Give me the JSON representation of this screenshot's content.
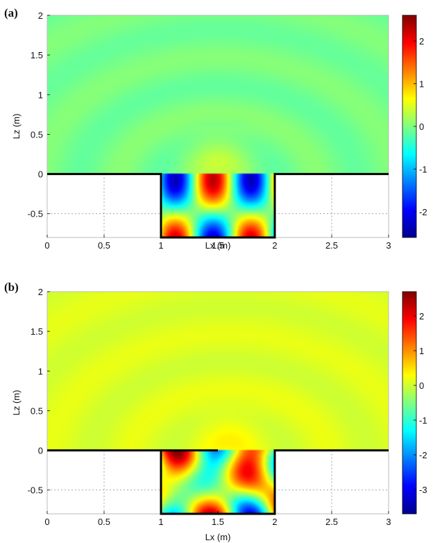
{
  "chart_data": [
    {
      "type": "heatmap",
      "panel_label": "(a)",
      "xlabel": "Lx (m)",
      "ylabel": "Lz (m)",
      "xlim": [
        0,
        3
      ],
      "ylim": [
        -0.8,
        2
      ],
      "xticks": [
        "0",
        "0.5",
        "1",
        "1.5",
        "2",
        "2.5",
        "3"
      ],
      "yticks": [
        "2",
        "1.5",
        "1",
        "0.5",
        "0",
        "-0.5"
      ],
      "colorbar": {
        "min": -2.6,
        "max": 2.6,
        "ticks": [
          "2",
          "1",
          "0",
          "-1",
          "-2"
        ]
      },
      "geometry": {
        "ground_level": 0,
        "cavity_x": [
          1,
          2
        ],
        "cavity_bottom": -0.8
      },
      "cavity_modes": {
        "nx": 3,
        "nz": 2,
        "sign": 1
      },
      "radiation_source_x": 1.5
    },
    {
      "type": "heatmap",
      "panel_label": "(b)",
      "xlabel": "Lx (m)",
      "ylabel": "Lz (m)",
      "xlim": [
        0,
        3
      ],
      "ylim": [
        -0.8,
        2
      ],
      "xticks": [
        "0",
        "0.5",
        "1",
        "1.5",
        "2",
        "2.5",
        "3"
      ],
      "yticks": [
        "2",
        "1.5",
        "1",
        "0.5",
        "0",
        "-0.5"
      ],
      "colorbar": {
        "min": -3.7,
        "max": 2.7,
        "ticks": [
          "2",
          "1",
          "0",
          "-1",
          "-2",
          "-3"
        ]
      },
      "geometry": {
        "ground_level": 0,
        "cavity_x": [
          1,
          2
        ],
        "cavity_bottom": -0.8,
        "inner_plate_x": [
          1,
          1.5
        ]
      },
      "cavity_modes": {
        "nx": 3,
        "nz": 2,
        "sign": -1
      },
      "radiation_source_x": 1.6
    }
  ],
  "colors": {
    "background": "#ffffff",
    "boundary": "#000000",
    "grid": "#888888"
  }
}
